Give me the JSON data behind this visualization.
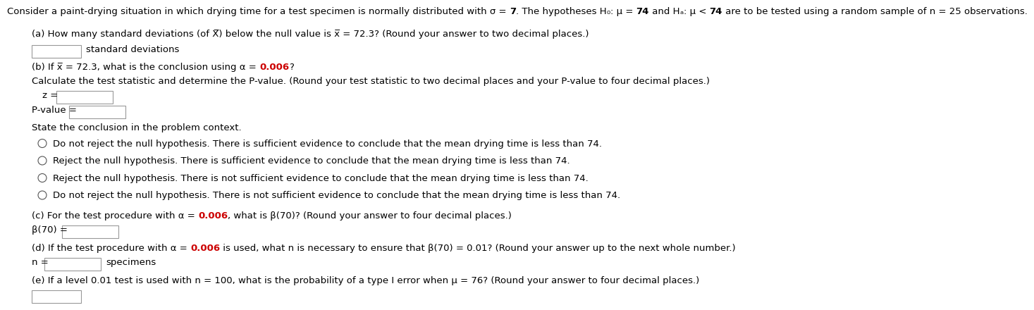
{
  "bg_color": "#ffffff",
  "black": "#000000",
  "red": "#cc0000",
  "fs": 9.5,
  "fs_small": 9.0,
  "intro_normal": "Consider a paint-drying situation in which drying time for a test specimen is normally distributed with σ = ",
  "intro_bold1": "7",
  "intro_mid1": ". The hypotheses H",
  "intro_sub0": "0",
  "intro_mid2": ": μ = ",
  "intro_bold2": "74",
  "intro_mid3": " and H",
  "intro_suba": "a",
  "intro_mid4": ": μ < ",
  "intro_bold3": "74",
  "intro_end": " are to be tested using a random sample of n = 25 observations.",
  "part_a": "(a) How many standard deviations (of X̅) below the null value is x̅ = 72.3? (Round your answer to two decimal places.)",
  "std_dev": "standard deviations",
  "part_b1": "(b) If x̅ = 72.3, what is the conclusion using α = ",
  "part_b_alpha": "0.006",
  "part_b2": "?",
  "part_b3": "Calculate the test statistic and determine the P-value. (Round your test statistic to two decimal places and your P-value to four decimal places.)",
  "z_eq": "z =",
  "pval_eq": "P-value =",
  "state_concl": "State the conclusion in the problem context.",
  "radio1": "Do not reject the null hypothesis. There is sufficient evidence to conclude that the mean drying time is less than 74.",
  "radio2": "Reject the null hypothesis. There is sufficient evidence to conclude that the mean drying time is less than 74.",
  "radio3": "Reject the null hypothesis. There is not sufficient evidence to conclude that the mean drying time is less than 74.",
  "radio4": "Do not reject the null hypothesis. There is not sufficient evidence to conclude that the mean drying time is less than 74.",
  "part_c1": "(c) For the test procedure with α = ",
  "part_c_alpha": "0.006",
  "part_c2": ", what is β(70)? (Round your answer to four decimal places.)",
  "beta70": "β(70) =",
  "part_d1": "(d) If the test procedure with α = ",
  "part_d_alpha": "0.006",
  "part_d2": " is used, what n is necessary to ensure that β(70) = 0.01? (Round your answer up to the next whole number.)",
  "n_eq": "n =",
  "specimens": "specimens",
  "part_e": "(e) If a level 0.01 test is used with n = 100, what is the probability of a type I error when μ = 76? (Round your answer to four decimal places.)"
}
